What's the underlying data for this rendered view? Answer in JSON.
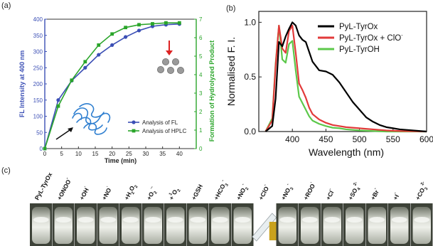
{
  "chart_data": [
    {
      "panel_label": "(a)",
      "type": "line",
      "xlabel": "Time (min)",
      "ylabel": "FL Intensity at 400 nm",
      "ylabel_right": "Formation of Hydrolyzed Product",
      "xlim": [
        0,
        45
      ],
      "ylim": [
        0,
        400
      ],
      "ylim_right": [
        0,
        7
      ],
      "x_ticks": [
        "0",
        "5",
        "10",
        "15",
        "20",
        "25",
        "30",
        "35",
        "40"
      ],
      "y_ticks": [
        "0",
        "50",
        "100",
        "150",
        "200",
        "250",
        "300",
        "350",
        "400"
      ],
      "y_ticks_right": [
        "0",
        "1",
        "2",
        "3",
        "4",
        "5",
        "6",
        "7"
      ],
      "legend_position": "bottom-right",
      "series": [
        {
          "name": "Analysis of FL",
          "axis": "left",
          "color": "#3b4fb5",
          "marker": "circle",
          "x": [
            0,
            4,
            8,
            12,
            16,
            20,
            24,
            28,
            32,
            36,
            40
          ],
          "y": [
            0,
            150,
            210,
            250,
            290,
            320,
            345,
            365,
            378,
            383,
            385
          ]
        },
        {
          "name": "Analysis of HPLC",
          "axis": "right",
          "color": "#2aa52a",
          "marker": "square",
          "x": [
            0,
            4,
            8,
            12,
            16,
            20,
            24,
            28,
            32,
            36,
            40
          ],
          "y": [
            0,
            2.3,
            3.7,
            4.7,
            5.6,
            6.2,
            6.55,
            6.7,
            6.75,
            6.8,
            6.8
          ]
        }
      ]
    },
    {
      "panel_label": "(b)",
      "type": "line",
      "xlabel": "Wavelength (nm)",
      "ylabel": "Normalised F. I.",
      "xlim": [
        350,
        600
      ],
      "ylim": [
        0,
        1.1
      ],
      "x_ticks": [
        "400",
        "450",
        "500",
        "550",
        "600"
      ],
      "y_ticks": [
        "0.0",
        "0.5",
        "1.0"
      ],
      "legend_position": "top-right",
      "series": [
        {
          "name": "PyL-TyrOx",
          "color": "#000000",
          "x": [
            360,
            370,
            375,
            380,
            385,
            390,
            395,
            400,
            405,
            410,
            415,
            420,
            425,
            430,
            440,
            450,
            460,
            470,
            480,
            490,
            500,
            510,
            520,
            530,
            540,
            550,
            560,
            570,
            580,
            590,
            600
          ],
          "y": [
            0.0,
            0.05,
            0.3,
            0.82,
            0.78,
            0.87,
            0.94,
            1.0,
            0.97,
            0.88,
            0.84,
            0.82,
            0.73,
            0.64,
            0.56,
            0.55,
            0.52,
            0.45,
            0.36,
            0.27,
            0.2,
            0.13,
            0.09,
            0.06,
            0.04,
            0.03,
            0.02,
            0.015,
            0.01,
            0.005,
            0.0
          ]
        },
        {
          "name": "PyL-TyrOx + ClO",
          "name_superscript": "-",
          "color": "#e23a3a",
          "x": [
            360,
            370,
            375,
            380,
            385,
            390,
            395,
            400,
            405,
            410,
            415,
            420,
            425,
            430,
            440,
            450,
            460,
            470,
            480,
            500,
            520,
            540,
            560,
            600
          ],
          "y": [
            0.0,
            0.1,
            0.6,
            0.97,
            0.76,
            0.72,
            0.92,
            0.97,
            0.72,
            0.44,
            0.38,
            0.31,
            0.22,
            0.16,
            0.11,
            0.08,
            0.06,
            0.05,
            0.04,
            0.03,
            0.02,
            0.01,
            0.005,
            0.0
          ]
        },
        {
          "name": "PyL-TyrOH",
          "color": "#5cc84a",
          "x": [
            360,
            370,
            375,
            380,
            385,
            390,
            395,
            400,
            405,
            410,
            415,
            420,
            425,
            430,
            440,
            450,
            460,
            470,
            480,
            500,
            520,
            540,
            600
          ],
          "y": [
            0.0,
            0.12,
            0.62,
            0.97,
            0.66,
            0.63,
            0.8,
            0.83,
            0.56,
            0.32,
            0.26,
            0.2,
            0.14,
            0.1,
            0.07,
            0.05,
            0.035,
            0.03,
            0.02,
            0.01,
            0.005,
            0.0,
            0.0
          ]
        }
      ]
    }
  ],
  "panel_c": {
    "label": "(c)",
    "samples": [
      {
        "text": "PyL-TyrOx",
        "sup": "",
        "sub": ""
      },
      {
        "text": "+ONOO",
        "sup": "-",
        "sub": ""
      },
      {
        "text": "+OH",
        "sup": "·",
        "sub": ""
      },
      {
        "text": "+NO",
        "sup": "·",
        "sub": ""
      },
      {
        "text": "+H",
        "sup": "",
        "sub": "2",
        "text2": "O",
        "sub2": "2"
      },
      {
        "text": "+O",
        "sup": "·-",
        "sub": "2"
      },
      {
        "text": "+",
        "sup": "1",
        "sub": "",
        "text2": "O",
        "sub2": "2"
      },
      {
        "text": "+GSH",
        "sup": "",
        "sub": ""
      },
      {
        "text": "+HCO",
        "sup": "-",
        "sub": "3"
      },
      {
        "text": "+NO",
        "sup": "-",
        "sub": "2"
      },
      {
        "text": "+ClO",
        "sup": "-",
        "sub": ""
      },
      {
        "text": "+NO",
        "sup": "-",
        "sub": "3"
      },
      {
        "text": "+ROO",
        "sup": "·",
        "sub": ""
      },
      {
        "text": "+Cl",
        "sup": "-",
        "sub": ""
      },
      {
        "text": "+SO",
        "sup": "2-",
        "sub": "4"
      },
      {
        "text": "+Br",
        "sup": "-",
        "sub": ""
      },
      {
        "text": "+I",
        "sup": "-",
        "sub": ""
      },
      {
        "text": "+CO",
        "sup": "2-",
        "sub": "3"
      }
    ]
  }
}
